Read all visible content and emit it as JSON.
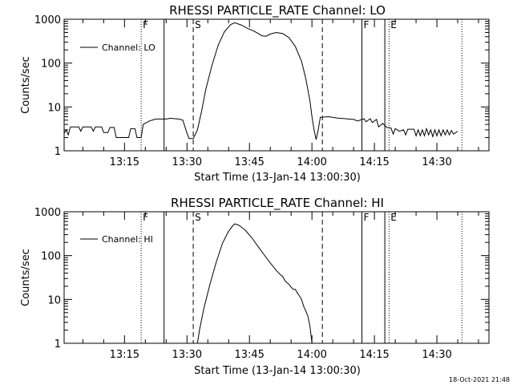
{
  "footer": {
    "stamp": "18-Oct-2021 21:48"
  },
  "chart_data": [
    {
      "type": "line",
      "title": "RHESSI PARTICLE_RATE Channel: LO",
      "xlabel": "Start Time (13-Jan-14 13:00:30)",
      "ylabel": "Counts/sec",
      "yscale": "log",
      "ylim": [
        1,
        1000
      ],
      "xlim": [
        "13:00:30",
        "14:42:30"
      ],
      "yticks": [
        {
          "v": 1,
          "label": "1"
        },
        {
          "v": 10,
          "label": "10"
        },
        {
          "v": 100,
          "label": "100"
        },
        {
          "v": 1000,
          "label": "1000"
        }
      ],
      "xticks": [
        {
          "t": "13:15",
          "label": "13:15"
        },
        {
          "t": "13:30",
          "label": "13:30"
        },
        {
          "t": "13:45",
          "label": "13:45"
        },
        {
          "t": "14:00",
          "label": "14:00"
        },
        {
          "t": "14:15",
          "label": "14:15"
        },
        {
          "t": "14:30",
          "label": "14:30"
        }
      ],
      "legend": {
        "placement": "top-left",
        "entries": [
          "Channel: LO"
        ]
      },
      "grid": false,
      "vlines": [
        {
          "t": "13:19:00",
          "style": "dotted",
          "label": "F"
        },
        {
          "t": "13:24:30",
          "style": "solid",
          "label": ""
        },
        {
          "t": "13:31:30",
          "style": "dashed",
          "label": "S"
        },
        {
          "t": "14:02:30",
          "style": "dashed",
          "label": ""
        },
        {
          "t": "14:12:00",
          "style": "solid",
          "label": "F"
        },
        {
          "t": "14:17:30",
          "style": "solid",
          "label": ""
        },
        {
          "t": "14:18:30",
          "style": "dotted",
          "label": "E"
        },
        {
          "t": "14:36:00",
          "style": "dotted",
          "label": ""
        }
      ],
      "series": [
        {
          "name": "Channel: LO",
          "points": [
            [
              "13:00:30",
              2.5
            ],
            [
              "13:01:00",
              3
            ],
            [
              "13:01:30",
              2.3
            ],
            [
              "13:02:00",
              3.5
            ],
            [
              "13:04:00",
              3.5
            ],
            [
              "13:04:30",
              2.8
            ],
            [
              "13:05:00",
              3.5
            ],
            [
              "13:07:00",
              3.5
            ],
            [
              "13:07:30",
              2.8
            ],
            [
              "13:08:00",
              3.5
            ],
            [
              "13:09:30",
              3.5
            ],
            [
              "13:10:00",
              2.6
            ],
            [
              "13:11:00",
              2.6
            ],
            [
              "13:11:30",
              3.4
            ],
            [
              "13:12:30",
              3.4
            ],
            [
              "13:13:00",
              2.0
            ],
            [
              "13:16:00",
              2.0
            ],
            [
              "13:16:30",
              3.2
            ],
            [
              "13:17:30",
              3.2
            ],
            [
              "13:18:00",
              2.0
            ],
            [
              "13:19:00",
              2.0
            ],
            [
              "13:19:30",
              4.0
            ],
            [
              "13:21:00",
              4.8
            ],
            [
              "13:22:30",
              5.3
            ],
            [
              "13:25:00",
              5.3
            ],
            [
              "13:26:00",
              5.5
            ],
            [
              "13:28:00",
              5.3
            ],
            [
              "13:29:00",
              5.0
            ],
            [
              "13:30:00",
              2.5
            ],
            [
              "13:30:30",
              1.9
            ],
            [
              "13:31:30",
              1.9
            ],
            [
              "13:32:30",
              3.0
            ],
            [
              "13:33:30",
              8
            ],
            [
              "13:34:30",
              25
            ],
            [
              "13:36:00",
              90
            ],
            [
              "13:37:30",
              260
            ],
            [
              "13:39:00",
              520
            ],
            [
              "13:40:30",
              760
            ],
            [
              "13:41:30",
              830
            ],
            [
              "13:43:00",
              740
            ],
            [
              "13:44:30",
              620
            ],
            [
              "13:46:00",
              540
            ],
            [
              "13:47:00",
              480
            ],
            [
              "13:48:00",
              420
            ],
            [
              "13:49:00",
              410
            ],
            [
              "13:50:00",
              460
            ],
            [
              "13:51:30",
              500
            ],
            [
              "13:53:00",
              470
            ],
            [
              "13:54:30",
              380
            ],
            [
              "13:56:00",
              240
            ],
            [
              "13:57:30",
              110
            ],
            [
              "13:58:30",
              45
            ],
            [
              "13:59:30",
              14
            ],
            [
              "14:00:00",
              6
            ],
            [
              "14:00:30",
              3.0
            ],
            [
              "14:01:00",
              1.8
            ],
            [
              "14:01:30",
              3.0
            ],
            [
              "14:02:00",
              5.8
            ],
            [
              "14:04:00",
              6.0
            ],
            [
              "14:06:00",
              5.6
            ],
            [
              "14:08:00",
              5.4
            ],
            [
              "14:10:00",
              5.2
            ],
            [
              "14:11:00",
              4.8
            ],
            [
              "14:12:30",
              5.4
            ],
            [
              "14:13:00",
              4.6
            ],
            [
              "14:14:00",
              5.4
            ],
            [
              "14:14:30",
              4.4
            ],
            [
              "14:15:30",
              5.2
            ],
            [
              "14:16:00",
              3.5
            ],
            [
              "14:17:00",
              4.2
            ],
            [
              "14:18:00",
              3.4
            ],
            [
              "14:19:00",
              3.3
            ],
            [
              "14:19:30",
              2.4
            ],
            [
              "14:20:00",
              3.2
            ],
            [
              "14:21:00",
              2.8
            ],
            [
              "14:22:00",
              3.0
            ],
            [
              "14:22:30",
              2.3
            ],
            [
              "14:23:00",
              3.1
            ],
            [
              "14:24:30",
              3.1
            ],
            [
              "14:25:00",
              2.2
            ],
            [
              "14:25:30",
              3.0
            ],
            [
              "14:26:00",
              2.2
            ],
            [
              "14:26:30",
              3.0
            ],
            [
              "14:27:00",
              2.2
            ],
            [
              "14:27:30",
              3.2
            ],
            [
              "14:28:00",
              2.3
            ],
            [
              "14:28:30",
              3.0
            ],
            [
              "14:29:00",
              2.1
            ],
            [
              "14:29:30",
              3.0
            ],
            [
              "14:30:00",
              2.2
            ],
            [
              "14:30:30",
              3.0
            ],
            [
              "14:31:00",
              2.2
            ],
            [
              "14:31:30",
              3.0
            ],
            [
              "14:32:00",
              2.3
            ],
            [
              "14:32:30",
              3.0
            ],
            [
              "14:33:00",
              2.3
            ],
            [
              "14:33:30",
              2.9
            ],
            [
              "14:34:00",
              2.4
            ],
            [
              "14:35:00",
              2.8
            ]
          ]
        }
      ]
    },
    {
      "type": "line",
      "title": "RHESSI PARTICLE_RATE Channel: HI",
      "xlabel": "Start Time (13-Jan-14 13:00:30)",
      "ylabel": "Counts/sec",
      "yscale": "log",
      "ylim": [
        1,
        1000
      ],
      "xlim": [
        "13:00:30",
        "14:42:30"
      ],
      "yticks": [
        {
          "v": 1,
          "label": "1"
        },
        {
          "v": 10,
          "label": "10"
        },
        {
          "v": 100,
          "label": "100"
        },
        {
          "v": 1000,
          "label": "1000"
        }
      ],
      "xticks": [
        {
          "t": "13:15",
          "label": "13:15"
        },
        {
          "t": "13:30",
          "label": "13:30"
        },
        {
          "t": "13:45",
          "label": "13:45"
        },
        {
          "t": "14:00",
          "label": "14:00"
        },
        {
          "t": "14:15",
          "label": "14:15"
        },
        {
          "t": "14:30",
          "label": "14:30"
        }
      ],
      "legend": {
        "placement": "top-left",
        "entries": [
          "Channel: HI"
        ]
      },
      "grid": false,
      "vlines": [
        {
          "t": "13:19:00",
          "style": "dotted",
          "label": "F"
        },
        {
          "t": "13:24:30",
          "style": "solid",
          "label": ""
        },
        {
          "t": "13:31:30",
          "style": "dashed",
          "label": "S"
        },
        {
          "t": "14:02:30",
          "style": "dashed",
          "label": ""
        },
        {
          "t": "14:12:00",
          "style": "solid",
          "label": "F"
        },
        {
          "t": "14:17:30",
          "style": "solid",
          "label": ""
        },
        {
          "t": "14:18:30",
          "style": "dotted",
          "label": "E"
        },
        {
          "t": "14:36:00",
          "style": "dotted",
          "label": ""
        }
      ],
      "series": [
        {
          "name": "Channel: HI",
          "points": [
            [
              "13:32:30",
              1.0
            ],
            [
              "13:33:00",
              2.0
            ],
            [
              "13:34:00",
              6
            ],
            [
              "13:35:30",
              22
            ],
            [
              "13:37:00",
              70
            ],
            [
              "13:38:30",
              190
            ],
            [
              "13:40:00",
              360
            ],
            [
              "13:41:00",
              480
            ],
            [
              "13:41:30",
              530
            ],
            [
              "13:42:30",
              490
            ],
            [
              "13:44:00",
              380
            ],
            [
              "13:45:30",
              260
            ],
            [
              "13:47:00",
              165
            ],
            [
              "13:48:30",
              105
            ],
            [
              "13:50:00",
              68
            ],
            [
              "13:51:30",
              45
            ],
            [
              "13:52:30",
              36
            ],
            [
              "13:53:00",
              33
            ],
            [
              "13:53:30",
              27
            ],
            [
              "13:54:00",
              24
            ],
            [
              "13:54:30",
              22
            ],
            [
              "13:55:00",
              19
            ],
            [
              "13:55:30",
              17
            ],
            [
              "13:56:00",
              17
            ],
            [
              "13:56:30",
              14
            ],
            [
              "13:57:00",
              12
            ],
            [
              "13:57:30",
              10
            ],
            [
              "13:58:00",
              7
            ],
            [
              "13:58:30",
              5.5
            ],
            [
              "13:59:00",
              4.2
            ],
            [
              "13:59:30",
              2.5
            ],
            [
              "14:00:00",
              1.0
            ]
          ]
        }
      ]
    }
  ]
}
